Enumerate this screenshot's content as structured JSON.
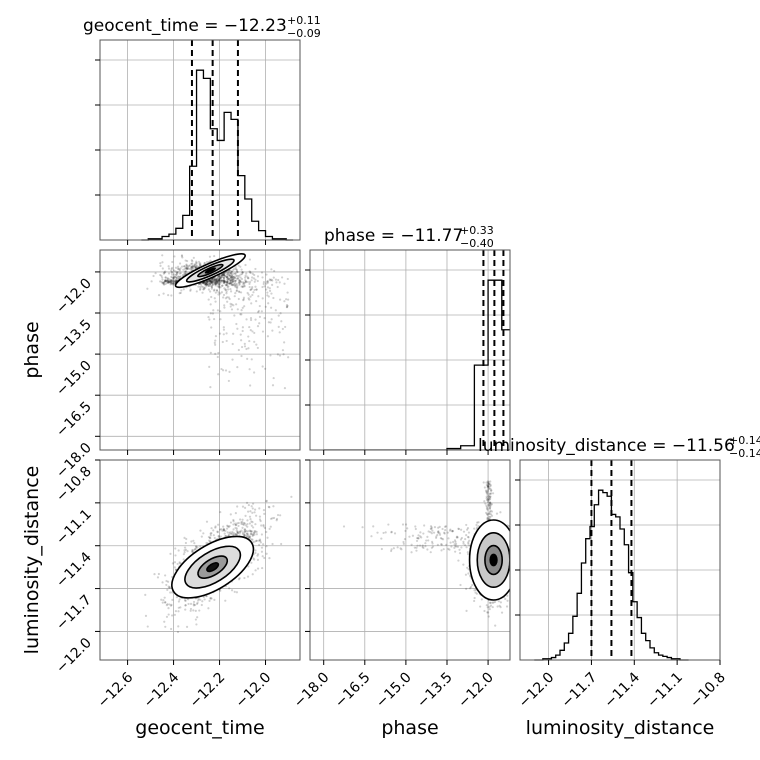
{
  "chart_data": {
    "type": "corner",
    "parameters": [
      "geocent_time",
      "phase",
      "luminosity_distance"
    ],
    "grid": true,
    "panels": {
      "diag": [
        {
          "param": "geocent_time",
          "title": {
            "label": "geocent_time",
            "median": "−12.23",
            "plus": "+0.11",
            "minus": "−0.09"
          },
          "quantiles": [
            -12.32,
            -12.23,
            -12.12
          ],
          "bins": [
            -12.54,
            -12.51,
            -12.48,
            -12.45,
            -12.42,
            -12.39,
            -12.36,
            -12.33,
            -12.3,
            -12.27,
            -12.24,
            -12.21,
            -12.18,
            -12.15,
            -12.12,
            -12.09,
            -12.06,
            -12.03,
            -12.0,
            -11.97,
            -11.94,
            -11.91,
            -11.88
          ],
          "counts": [
            0,
            1,
            1,
            3,
            5,
            10,
            21,
            63,
            145,
            138,
            95,
            85,
            109,
            103,
            55,
            35,
            16,
            8,
            3,
            1,
            1,
            0
          ]
        },
        {
          "param": "phase",
          "title": {
            "label": "phase",
            "median": "−11.77",
            "plus": "+0.33",
            "minus": "−0.40"
          },
          "quantiles": [
            -12.17,
            -11.77,
            -11.44
          ],
          "bins": [
            -18.0,
            -17.5,
            -17.0,
            -16.5,
            -16.0,
            -15.5,
            -15.0,
            -14.5,
            -14.0,
            -13.5,
            -13.0,
            -12.5,
            -12.0,
            -11.5,
            -11.2
          ],
          "counts": [
            0,
            0,
            0,
            0,
            0,
            0,
            0,
            0,
            0,
            1,
            3,
            60,
            120,
            85
          ]
        },
        {
          "param": "luminosity_distance",
          "title": {
            "label": "luminosity_distance",
            "median": "−11.56",
            "plus": "+0.14",
            "minus": "−0.14"
          },
          "quantiles": [
            -11.7,
            -11.56,
            -11.42
          ],
          "bins": [
            -12.1,
            -12.07,
            -12.04,
            -12.01,
            -11.98,
            -11.95,
            -11.92,
            -11.89,
            -11.86,
            -11.83,
            -11.8,
            -11.77,
            -11.74,
            -11.71,
            -11.68,
            -11.65,
            -11.62,
            -11.59,
            -11.56,
            -11.53,
            -11.5,
            -11.47,
            -11.44,
            -11.41,
            -11.38,
            -11.35,
            -11.32,
            -11.29,
            -11.26,
            -11.23,
            -11.2,
            -11.17,
            -11.14,
            -11.11,
            -11.08,
            -11.05,
            -11.02
          ],
          "counts": [
            0,
            0,
            1,
            1,
            2,
            4,
            8,
            14,
            22,
            36,
            55,
            80,
            100,
            110,
            128,
            140,
            138,
            135,
            120,
            118,
            108,
            95,
            72,
            48,
            35,
            22,
            16,
            10,
            6,
            4,
            3,
            2,
            1,
            1,
            0,
            0
          ]
        }
      ]
    },
    "axes": {
      "geocent_time": {
        "label": "geocent_time",
        "lim": [
          -12.72,
          -11.85
        ],
        "ticks": [
          -12.6,
          -12.4,
          -12.2,
          -12.0
        ],
        "tick_labels": [
          "−12.6",
          "−12.4",
          "−12.2",
          "−12.0"
        ]
      },
      "phase": {
        "label": "phase",
        "lim": [
          -18.5,
          -11.2
        ],
        "ticks": [
          -18.0,
          -16.5,
          -15.0,
          -13.5,
          -12.0
        ],
        "tick_labels": [
          "−18.0",
          "−16.5",
          "−15.0",
          "−13.5",
          "−12.0"
        ]
      },
      "luminosity_distance": {
        "label": "luminosity_distance",
        "lim": [
          -12.2,
          -10.8
        ],
        "ticks": [
          -12.0,
          -11.7,
          -11.4,
          -11.1,
          -10.8
        ],
        "tick_labels": [
          "−12.0",
          "−11.7",
          "−11.4",
          "−11.1",
          "−10.8"
        ]
      }
    }
  }
}
